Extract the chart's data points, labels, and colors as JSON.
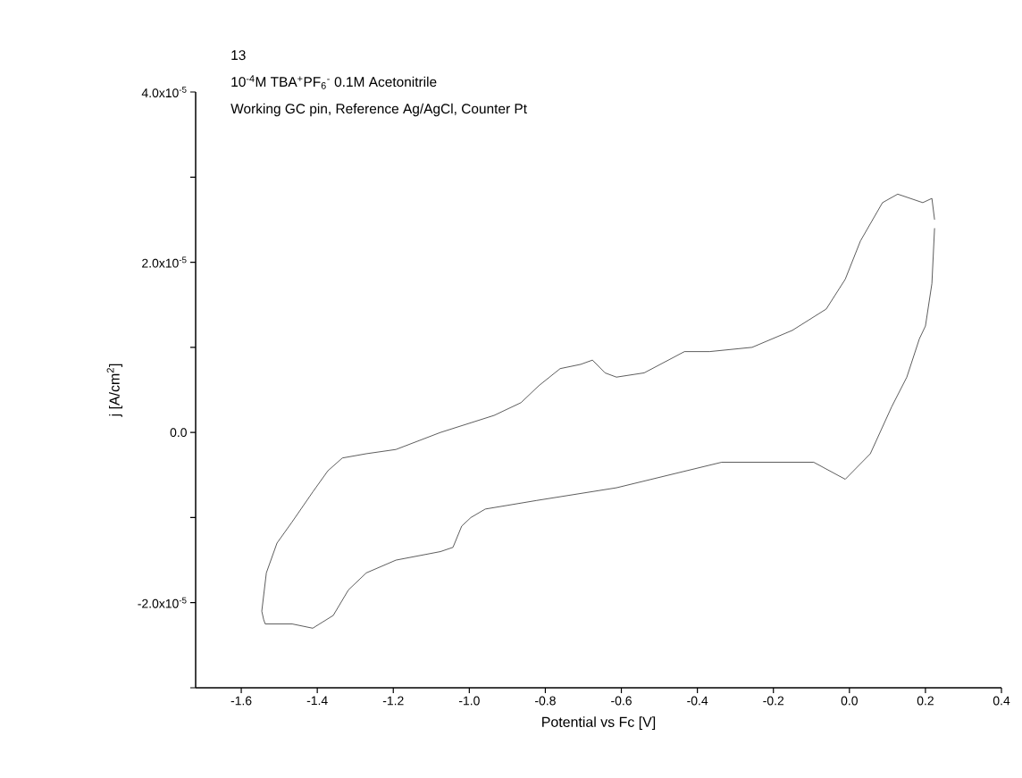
{
  "chart_data": {
    "type": "line",
    "title": "13",
    "subtitle": "10$^{-4}$M TBA$^{+}$PF$_{6}$$^{-}$  0.1M Acetonitrile",
    "annotations": [
      "Working GC pin, Reference Ag/AgCl, Counter Pt"
    ],
    "xlabel": "Potential vs Fc [V]",
    "ylabel": "j [A/cm$^{2}$]",
    "xlim": [
      -1.72,
      0.4
    ],
    "ylim": [
      -3e-05,
      4e-05
    ],
    "xticks": [
      {
        "value": -1.6,
        "label": "-1.6"
      },
      {
        "value": -1.4,
        "label": "-1.4"
      },
      {
        "value": -1.2,
        "label": "-1.2"
      },
      {
        "value": -1.0,
        "label": "-1.0"
      },
      {
        "value": -0.8,
        "label": "-0.8"
      },
      {
        "value": -0.6,
        "label": "-0.6"
      },
      {
        "value": -0.4,
        "label": "-0.4"
      },
      {
        "value": -0.2,
        "label": "-0.2"
      },
      {
        "value": 0.0,
        "label": "0.0"
      },
      {
        "value": 0.2,
        "label": "0.2"
      },
      {
        "value": 0.4,
        "label": "0.4"
      }
    ],
    "yticks": [
      {
        "value": -3e-05,
        "label": null
      },
      {
        "value": -2e-05,
        "label": "-2.0x10$^{-5}$"
      },
      {
        "value": -1e-05,
        "label": null
      },
      {
        "value": 0.0,
        "label": "0.0"
      },
      {
        "value": 1e-05,
        "label": null
      },
      {
        "value": 2e-05,
        "label": "2.0x10$^{-5}$"
      },
      {
        "value": 3e-05,
        "label": null
      },
      {
        "value": 4e-05,
        "label": "4.0x10$^{-5}$"
      }
    ],
    "series": [
      {
        "color": "#333333",
        "x": [
          0.224,
          0.217,
          0.2,
          0.184,
          0.151,
          0.111,
          0.055,
          -0.011,
          -0.094,
          -0.239,
          -0.336,
          -0.613,
          -0.824,
          -0.958,
          -0.996,
          -1.02,
          -1.043,
          -1.076,
          -1.193,
          -1.271,
          -1.318,
          -1.358,
          -1.412,
          -1.466,
          -1.537,
          -1.541,
          -1.546,
          -1.534,
          -1.506,
          -1.466,
          -1.412,
          -1.372,
          -1.334,
          -1.271,
          -1.193,
          -1.076,
          -0.935,
          -0.864,
          -0.817,
          -0.761,
          -0.707,
          -0.676,
          -0.643,
          -0.613,
          -0.54,
          -0.434,
          -0.368,
          -0.256,
          -0.15,
          -0.061,
          -0.011,
          0.029,
          0.087,
          0.127,
          0.193,
          0.217,
          0.224
        ],
        "values": [
          2.4e-05,
          1.75e-05,
          1.25e-05,
          1.1e-05,
          6.5e-06,
          3e-06,
          -2.5e-06,
          -5.5e-06,
          -3.5e-06,
          -3.5e-06,
          -3.5e-06,
          -6.5e-06,
          -8e-06,
          -9e-06,
          -1e-05,
          -1.1e-05,
          -1.35e-05,
          -1.4e-05,
          -1.5e-05,
          -1.65e-05,
          -1.85e-05,
          -2.15e-05,
          -2.3e-05,
          -2.25e-05,
          -2.25e-05,
          -2.2e-05,
          -2.1e-05,
          -1.65e-05,
          -1.3e-05,
          -1.05e-05,
          -7e-06,
          -4.5e-06,
          -3e-06,
          -2.5e-06,
          -2e-06,
          0.0,
          2e-06,
          3.5e-06,
          5.5e-06,
          7.5e-06,
          8e-06,
          8.5e-06,
          7e-06,
          6.5e-06,
          7e-06,
          9.5e-06,
          9.5e-06,
          1e-05,
          1.2e-05,
          1.45e-05,
          1.8e-05,
          2.25e-05,
          2.7e-05,
          2.8e-05,
          2.7e-05,
          2.75e-05,
          2.5e-05
        ]
      }
    ]
  }
}
